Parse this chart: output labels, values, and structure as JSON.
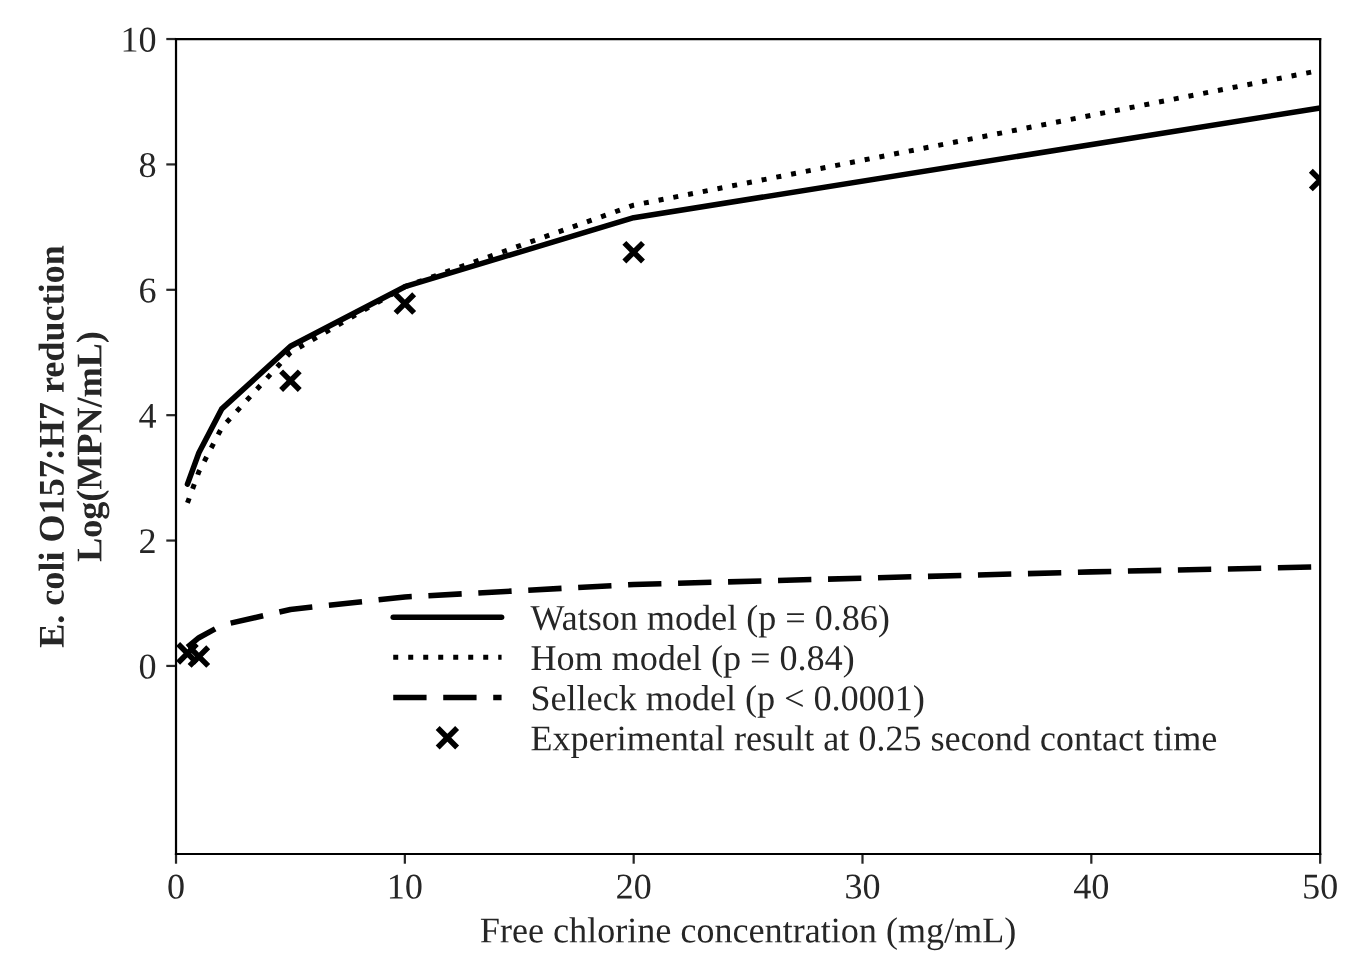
{
  "chart_data": {
    "type": "line",
    "xlabel": "Free chlorine concentration (mg/mL)",
    "ylabel": "E. coli O157:H7 reduction\nLog(MPN/mL)",
    "xlim": [
      0,
      50
    ],
    "xticks": [
      0,
      10,
      20,
      30,
      40,
      50
    ],
    "ylim": [
      -3,
      10
    ],
    "yticks": [
      0,
      2,
      4,
      6,
      8,
      10
    ],
    "grid": false,
    "legend": "bottom",
    "series": [
      {
        "name": "Watson model (p = 0.86)",
        "color": "#000000",
        "line_style": "solid",
        "marker": "none",
        "x": [
          0.5,
          1,
          2,
          5,
          10,
          20,
          50
        ],
        "values": [
          2.9,
          3.4,
          4.1,
          5.1,
          6.05,
          7.15,
          8.9
        ]
      },
      {
        "name": "Hom model (p = 0.84)",
        "color": "#000000",
        "line_style": "dotted",
        "marker": "none",
        "x": [
          0.5,
          1,
          2,
          5,
          10,
          20,
          50
        ],
        "values": [
          2.6,
          3.1,
          3.8,
          5.0,
          6.05,
          7.35,
          9.5
        ]
      },
      {
        "name": "Selleck model (p < 0.0001)",
        "color": "#000000",
        "line_style": "dashed",
        "marker": "none",
        "x": [
          0.5,
          1,
          2,
          5,
          10,
          20,
          30,
          40,
          50
        ],
        "values": [
          0.3,
          0.45,
          0.65,
          0.9,
          1.1,
          1.3,
          1.4,
          1.5,
          1.58
        ]
      },
      {
        "name": "Experimental result at 0.25 second contact time",
        "type": "scatter",
        "color": "#000000",
        "marker": "cross",
        "x": [
          0.5,
          1,
          5,
          10,
          20,
          50
        ],
        "values": [
          0.2,
          0.15,
          4.55,
          5.78,
          6.6,
          7.75
        ]
      }
    ]
  }
}
